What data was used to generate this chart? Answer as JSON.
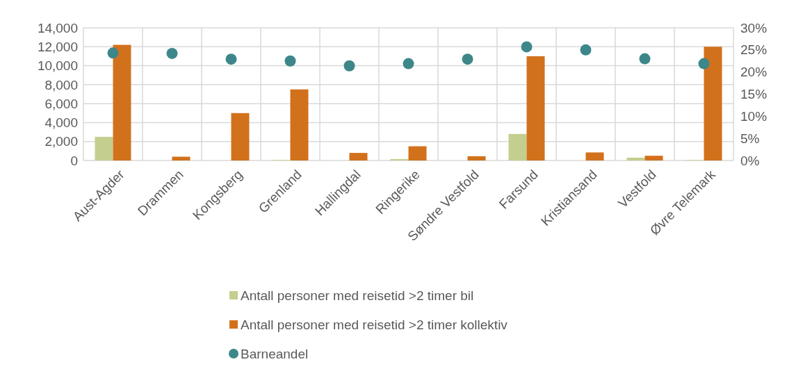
{
  "chart_data": {
    "type": "bar",
    "categories": [
      "Aust-Agder",
      "Drammen",
      "Kongsberg",
      "Grenland",
      "Hallingdal",
      "Ringerike",
      "Søndre Vestfold",
      "Farsund",
      "Kristiansand",
      "Vestfold",
      "Øvre Telemark"
    ],
    "series": [
      {
        "name": "Antall personer med reisetid >2 timer bil",
        "color": "#c4ce8f",
        "values": [
          2500,
          null,
          0,
          50,
          null,
          150,
          0,
          2800,
          null,
          300,
          50
        ]
      },
      {
        "name": "Antall personer med reisetid >2 timer kollektiv",
        "color": "#d2711c",
        "values": [
          12200,
          400,
          5000,
          7500,
          800,
          1500,
          450,
          11000,
          850,
          500,
          12000
        ]
      },
      {
        "name": "Barneandel",
        "type": "scatter",
        "axis": "y2",
        "color": "#3d878a",
        "marker": "circle",
        "values": [
          24.3,
          24.2,
          22.9,
          22.5,
          21.4,
          21.9,
          22.9,
          25.7,
          25.0,
          23.0,
          21.9
        ]
      }
    ],
    "ylim": [
      0,
      14000
    ],
    "yticks": [
      {
        "value": 0,
        "label": "0"
      },
      {
        "value": 2000,
        "label": "2,000"
      },
      {
        "value": 4000,
        "label": "4,000"
      },
      {
        "value": 6000,
        "label": "6,000"
      },
      {
        "value": 8000,
        "label": "8,000"
      },
      {
        "value": 10000,
        "label": "10,000"
      },
      {
        "value": 12000,
        "label": "12,000"
      },
      {
        "value": 14000,
        "label": "14,000"
      }
    ],
    "y2lim": [
      0,
      30
    ],
    "y2ticks": [
      {
        "value": 0,
        "label": "0%"
      },
      {
        "value": 5,
        "label": "5%"
      },
      {
        "value": 10,
        "label": "10%"
      },
      {
        "value": 15,
        "label": "15%"
      },
      {
        "value": 20,
        "label": "20%"
      },
      {
        "value": 25,
        "label": "25%"
      },
      {
        "value": 30,
        "label": "30%"
      }
    ],
    "grid": true,
    "legend": "bottom"
  }
}
